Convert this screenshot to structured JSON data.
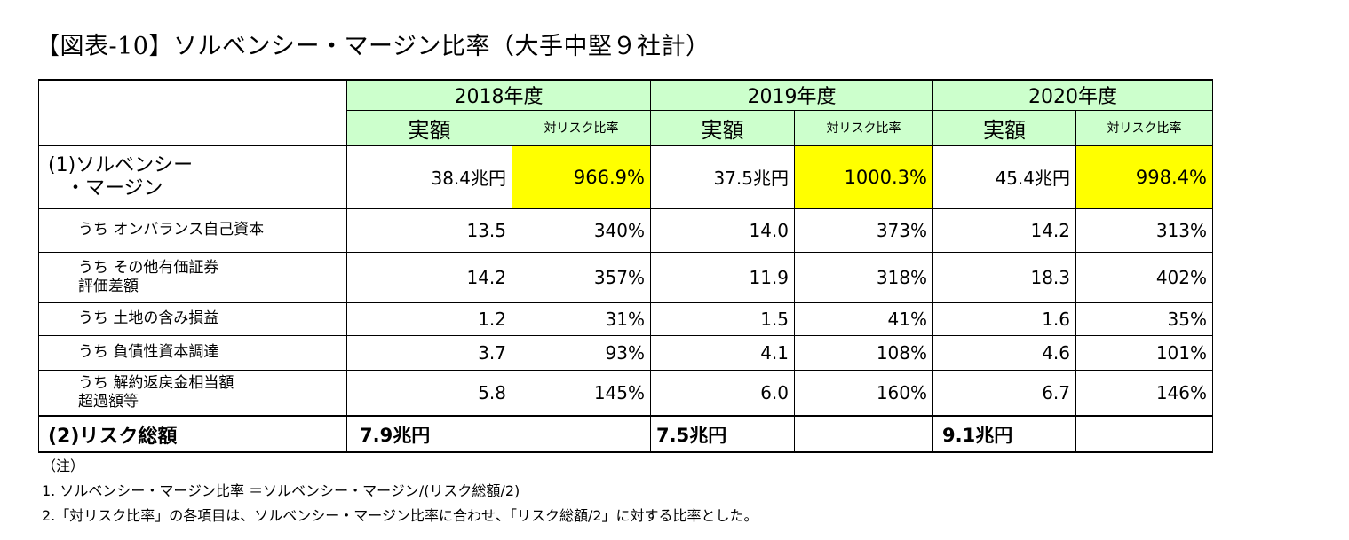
{
  "title": "【図表-10】ソルベンシー・マージン比率（大手中堅９社計）",
  "header": {
    "years": [
      "2018年度",
      "2019年度",
      "2020年度"
    ],
    "amount_label": "実額",
    "ratio_label": "対リスク比率"
  },
  "solvency": {
    "label_line1": "(1)ソルベンシー",
    "label_line2": "・マージン",
    "values": [
      {
        "amount": "38.4兆円",
        "ratio": "966.9%"
      },
      {
        "amount": "37.5兆円",
        "ratio": "1000.3%"
      },
      {
        "amount": "45.4兆円",
        "ratio": "998.4%"
      }
    ]
  },
  "rows": [
    {
      "line1": "うち オンバランス自己資本",
      "line2": "",
      "values": [
        [
          "13.5",
          "340%"
        ],
        [
          "14.0",
          "373%"
        ],
        [
          "14.2",
          "313%"
        ]
      ]
    },
    {
      "line1": "うち その他有価証券",
      "line2": "評価差額",
      "values": [
        [
          "14.2",
          "357%"
        ],
        [
          "11.9",
          "318%"
        ],
        [
          "18.3",
          "402%"
        ]
      ]
    },
    {
      "line1": "うち 土地の含み損益",
      "line2": "",
      "values": [
        [
          "1.2",
          "31%"
        ],
        [
          "1.5",
          "41%"
        ],
        [
          "1.6",
          "35%"
        ]
      ]
    },
    {
      "line1": "うち 負債性資本調達",
      "line2": "",
      "values": [
        [
          "3.7",
          "93%"
        ],
        [
          "4.1",
          "108%"
        ],
        [
          "4.6",
          "101%"
        ]
      ]
    },
    {
      "line1": "うち 解約返戻金相当額",
      "line2": "超過額等",
      "values": [
        [
          "5.8",
          "145%"
        ],
        [
          "6.0",
          "160%"
        ],
        [
          "6.7",
          "146%"
        ]
      ]
    }
  ],
  "risk": {
    "label": "(2)リスク総額",
    "values": [
      "7.9兆円",
      "7.5兆円",
      "9.1兆円"
    ]
  },
  "notes": {
    "heading": "（注）",
    "items": [
      "1. ソルベンシー・マージン比率 ＝ソルベンシー・マージン/(リスク総額/2)",
      "2.「対リスク比率」の各項目は、ソルベンシー・マージン比率に合わせ、「リスク総額/2」に対する比率とした。"
    ]
  },
  "colors": {
    "header_bg": "#ccffcc",
    "highlight": "#ffff00"
  }
}
